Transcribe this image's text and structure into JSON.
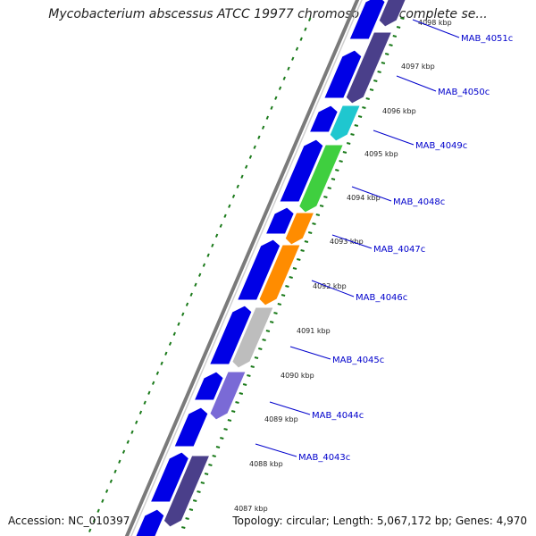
{
  "title": "Mycobacterium abscessus ATCC 19977 chromosome 1, complete se...",
  "footer": {
    "accession": "Accession: NC_010397",
    "summary": "Topology: circular; Length: 5,067,172 bp; Genes: 4,970"
  },
  "colors": {
    "backbone": "#7a7a7a",
    "forward_gene": "#0000e6",
    "tick": "#1a7a1a",
    "label": "#0000cc"
  },
  "scale": {
    "markers": [
      "4098 kbp",
      "4097 kbp",
      "4096 kbp",
      "4095 kbp",
      "4094 kbp",
      "4093 kbp",
      "4092 kbp",
      "4091 kbp",
      "4090 kbp",
      "4089 kbp",
      "4088 kbp",
      "4087 kbp"
    ]
  },
  "genes": [
    {
      "label": "MAB_4051c",
      "color": "#4a3f8a"
    },
    {
      "label": "MAB_4050c",
      "color": "#4a3f8a"
    },
    {
      "label": "MAB_4049c",
      "color": "#1fc7cf"
    },
    {
      "label": "MAB_4048c",
      "color": "#3fcf3f"
    },
    {
      "label": "MAB_4047c",
      "color": "#ff8c00"
    },
    {
      "label": "MAB_4046c",
      "color": "#ff8c00"
    },
    {
      "label": "MAB_4045c",
      "color": "#bdbdbd"
    },
    {
      "label": "MAB_4044c",
      "color": "#7a6ad6"
    },
    {
      "label": "MAB_4043c",
      "color": "#4a3f8a"
    }
  ]
}
